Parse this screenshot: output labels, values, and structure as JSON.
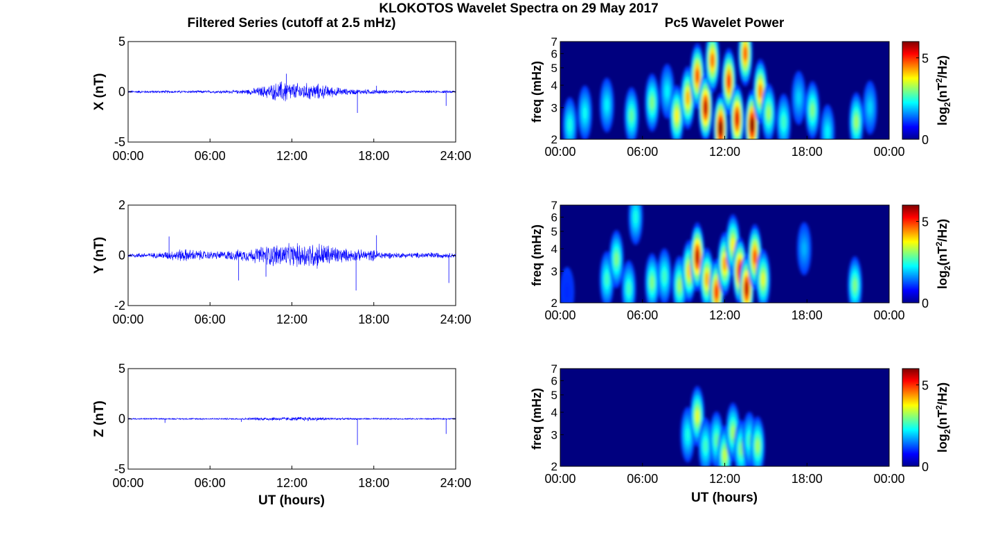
{
  "figure": {
    "title": "KLOKOTOS Wavelet Spectra on 29 May 2017",
    "left_title": "Filtered Series (cutoff at 2.5 mHz)",
    "right_title": "Pc5 Wavelet Power",
    "xlabel": "UT (hours)"
  },
  "colors": {
    "trace": "#0000ff",
    "background": "#00007f",
    "axis": "#000000"
  },
  "chart_data": [
    {
      "type": "line",
      "ylabel": "X (nT)",
      "ylim": [
        -5,
        5
      ],
      "yticks": [
        "5",
        "0",
        "-5"
      ],
      "xlim": [
        0,
        24
      ],
      "xticks": [
        "00:00",
        "06:00",
        "12:00",
        "18:00",
        "24:00"
      ],
      "envelope": {
        "x_hours": [
          0,
          2,
          4,
          6,
          8,
          9,
          10,
          11,
          11.5,
          12,
          13,
          14,
          15,
          16,
          17,
          18,
          19,
          20,
          22,
          24
        ],
        "amplitude_nT": [
          0.15,
          0.15,
          0.15,
          0.15,
          0.2,
          0.35,
          0.7,
          1.1,
          1.4,
          1.0,
          1.0,
          0.9,
          0.6,
          0.35,
          0.3,
          0.3,
          0.2,
          0.15,
          0.15,
          0.15
        ]
      },
      "spikes": [
        {
          "x": 16.8,
          "y": -2.1
        },
        {
          "x": 18.2,
          "y": 0.6
        },
        {
          "x": 11.6,
          "y": 1.8
        },
        {
          "x": 23.3,
          "y": -1.4
        }
      ]
    },
    {
      "type": "line",
      "ylabel": "Y (nT)",
      "ylim": [
        -2,
        2
      ],
      "yticks": [
        "2",
        "0",
        "-2"
      ],
      "xlim": [
        0,
        24
      ],
      "xticks": [
        "00:00",
        "06:00",
        "12:00",
        "18:00",
        "24:00"
      ],
      "envelope": {
        "x_hours": [
          0,
          2,
          3,
          4,
          5,
          6,
          7,
          8,
          9,
          10,
          11,
          12,
          13,
          14,
          15,
          16,
          17,
          18,
          19,
          20,
          21,
          22,
          23,
          24
        ],
        "amplitude_nT": [
          0.1,
          0.12,
          0.2,
          0.3,
          0.25,
          0.18,
          0.2,
          0.25,
          0.3,
          0.45,
          0.55,
          0.5,
          0.6,
          0.6,
          0.45,
          0.3,
          0.25,
          0.25,
          0.15,
          0.12,
          0.12,
          0.15,
          0.12,
          0.1
        ]
      },
      "spikes": [
        {
          "x": 8.1,
          "y": -1.0
        },
        {
          "x": 16.7,
          "y": -1.4
        },
        {
          "x": 23.5,
          "y": -1.1
        },
        {
          "x": 3.0,
          "y": 0.75
        },
        {
          "x": 18.2,
          "y": 0.8
        },
        {
          "x": 10.1,
          "y": -0.85
        }
      ]
    },
    {
      "type": "line",
      "ylabel": "Z (nT)",
      "ylim": [
        -5,
        5
      ],
      "yticks": [
        "5",
        "0",
        "-5"
      ],
      "xlim": [
        0,
        24
      ],
      "xticks": [
        "00:00",
        "06:00",
        "12:00",
        "18:00",
        "24:00"
      ],
      "envelope": {
        "x_hours": [
          0,
          4,
          8,
          9,
          10,
          11,
          12,
          13,
          14,
          15,
          16,
          18,
          20,
          24
        ],
        "amplitude_nT": [
          0.08,
          0.08,
          0.1,
          0.15,
          0.2,
          0.22,
          0.2,
          0.25,
          0.2,
          0.15,
          0.1,
          0.1,
          0.08,
          0.08
        ]
      },
      "spikes": [
        {
          "x": 16.8,
          "y": -2.6
        },
        {
          "x": 23.3,
          "y": -1.5
        },
        {
          "x": 2.7,
          "y": -0.4
        },
        {
          "x": 8.3,
          "y": -0.3
        }
      ]
    },
    {
      "type": "heatmap",
      "ylabel": "freq (mHz)",
      "yticks": [
        "2",
        "3",
        "4",
        "5",
        "6",
        "7"
      ],
      "ylim": [
        2,
        7
      ],
      "ylog": true,
      "xlim": [
        0,
        24
      ],
      "xticks": [
        "00:00",
        "06:00",
        "12:00",
        "18:00",
        "00:00"
      ],
      "colorbar": {
        "label": "log2(nT2/Hz)",
        "ticks": [
          "0",
          "5"
        ],
        "range": [
          0,
          6
        ]
      },
      "blobs": [
        {
          "t": 0.7,
          "f": 2.4,
          "p": 2.4
        },
        {
          "t": 1.8,
          "f": 2.8,
          "p": 2.3
        },
        {
          "t": 3.4,
          "f": 3.1,
          "p": 2.2
        },
        {
          "t": 5.2,
          "f": 2.7,
          "p": 2.8
        },
        {
          "t": 6.7,
          "f": 3.2,
          "p": 3.0
        },
        {
          "t": 7.8,
          "f": 3.7,
          "p": 2.2
        },
        {
          "t": 8.5,
          "f": 2.7,
          "p": 3.8
        },
        {
          "t": 9.3,
          "f": 3.4,
          "p": 4.2
        },
        {
          "t": 10.0,
          "f": 4.5,
          "p": 4.8
        },
        {
          "t": 10.6,
          "f": 3.0,
          "p": 5.6
        },
        {
          "t": 11.1,
          "f": 5.5,
          "p": 4.6
        },
        {
          "t": 11.7,
          "f": 2.3,
          "p": 6.0
        },
        {
          "t": 12.3,
          "f": 4.2,
          "p": 5.0
        },
        {
          "t": 12.9,
          "f": 2.6,
          "p": 5.4
        },
        {
          "t": 13.5,
          "f": 6.0,
          "p": 4.7
        },
        {
          "t": 14.0,
          "f": 2.4,
          "p": 6.0
        },
        {
          "t": 14.6,
          "f": 3.7,
          "p": 4.5
        },
        {
          "t": 15.2,
          "f": 2.8,
          "p": 3.2
        },
        {
          "t": 16.3,
          "f": 2.5,
          "p": 2.6
        },
        {
          "t": 17.4,
          "f": 3.4,
          "p": 2.0
        },
        {
          "t": 18.4,
          "f": 2.9,
          "p": 3.0
        },
        {
          "t": 19.5,
          "f": 2.2,
          "p": 2.2
        },
        {
          "t": 21.6,
          "f": 2.5,
          "p": 3.2
        },
        {
          "t": 22.6,
          "f": 3.0,
          "p": 2.0
        }
      ]
    },
    {
      "type": "heatmap",
      "ylabel": "freq (mHz)",
      "yticks": [
        "2",
        "3",
        "4",
        "5",
        "6",
        "7"
      ],
      "ylim": [
        2,
        7
      ],
      "ylog": true,
      "xlim": [
        0,
        24
      ],
      "xticks": [
        "00:00",
        "06:00",
        "12:00",
        "18:00",
        "00:00"
      ],
      "colorbar": {
        "label": "log2(nT2/Hz)",
        "ticks": [
          "0",
          "5"
        ],
        "range": [
          0,
          6
        ]
      },
      "blobs": [
        {
          "t": 0.5,
          "f": 2.3,
          "p": 1.0
        },
        {
          "t": 3.4,
          "f": 2.7,
          "p": 2.6
        },
        {
          "t": 4.1,
          "f": 3.5,
          "p": 3.0
        },
        {
          "t": 5.0,
          "f": 2.4,
          "p": 2.6
        },
        {
          "t": 5.5,
          "f": 6.0,
          "p": 2.4
        },
        {
          "t": 6.7,
          "f": 2.6,
          "p": 3.0
        },
        {
          "t": 7.6,
          "f": 2.8,
          "p": 2.6
        },
        {
          "t": 8.7,
          "f": 2.5,
          "p": 3.2
        },
        {
          "t": 9.4,
          "f": 3.0,
          "p": 4.0
        },
        {
          "t": 10.0,
          "f": 3.6,
          "p": 5.6
        },
        {
          "t": 10.7,
          "f": 2.7,
          "p": 4.2
        },
        {
          "t": 11.4,
          "f": 2.3,
          "p": 5.0
        },
        {
          "t": 12.0,
          "f": 3.3,
          "p": 4.3
        },
        {
          "t": 12.6,
          "f": 4.2,
          "p": 3.8
        },
        {
          "t": 13.1,
          "f": 3.0,
          "p": 5.4
        },
        {
          "t": 13.6,
          "f": 2.4,
          "p": 5.6
        },
        {
          "t": 14.2,
          "f": 3.6,
          "p": 4.8
        },
        {
          "t": 14.8,
          "f": 2.7,
          "p": 3.6
        },
        {
          "t": 17.8,
          "f": 4.0,
          "p": 1.8
        },
        {
          "t": 21.5,
          "f": 2.5,
          "p": 3.0
        }
      ]
    },
    {
      "type": "heatmap",
      "ylabel": "freq (mHz)",
      "yticks": [
        "2",
        "3",
        "4",
        "5",
        "6",
        "7"
      ],
      "ylim": [
        2,
        7
      ],
      "ylog": true,
      "xlim": [
        0,
        24
      ],
      "xticks": [
        "00:00",
        "06:00",
        "12:00",
        "18:00",
        "00:00"
      ],
      "xlabel": "UT (hours)",
      "colorbar": {
        "label": "log2(nT2/Hz)",
        "ticks": [
          "0",
          "5"
        ],
        "range": [
          0,
          6
        ]
      },
      "blobs": [
        {
          "t": 9.3,
          "f": 3.0,
          "p": 2.4
        },
        {
          "t": 10.0,
          "f": 3.8,
          "p": 3.6
        },
        {
          "t": 10.6,
          "f": 2.6,
          "p": 2.6
        },
        {
          "t": 11.4,
          "f": 2.8,
          "p": 2.8
        },
        {
          "t": 12.0,
          "f": 2.3,
          "p": 3.4
        },
        {
          "t": 12.6,
          "f": 3.1,
          "p": 3.2
        },
        {
          "t": 13.2,
          "f": 2.5,
          "p": 3.0
        },
        {
          "t": 13.8,
          "f": 2.8,
          "p": 2.6
        },
        {
          "t": 14.4,
          "f": 2.6,
          "p": 3.2
        }
      ]
    }
  ]
}
